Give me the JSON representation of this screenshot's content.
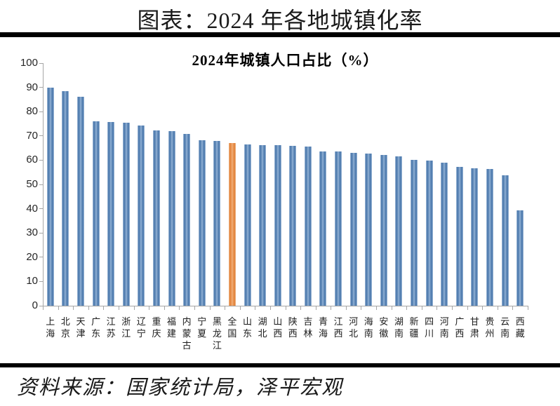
{
  "page": {
    "title": "图表：2024 年各地城镇化率",
    "source": "资料来源：国家统计局，泽平宏观"
  },
  "chart_data": {
    "type": "bar",
    "title": "2024年城镇人口占比（%）",
    "categories": [
      "上海",
      "北京",
      "天津",
      "广东",
      "江苏",
      "浙江",
      "辽宁",
      "重庆",
      "福建",
      "内蒙古",
      "宁夏",
      "黑龙江",
      "全国",
      "山东",
      "湖北",
      "山西",
      "陕西",
      "吉林",
      "青海",
      "江西",
      "河北",
      "海南",
      "安徽",
      "湖南",
      "新疆",
      "四川",
      "河南",
      "广西",
      "甘肃",
      "贵州",
      "云南",
      "西藏"
    ],
    "values": [
      89.9,
      88.4,
      86.1,
      76.0,
      75.6,
      75.4,
      74.3,
      72.3,
      71.9,
      70.8,
      68.3,
      68.0,
      67.0,
      66.4,
      66.2,
      66.2,
      65.9,
      65.6,
      63.5,
      63.5,
      63.1,
      62.6,
      62.1,
      61.6,
      60.2,
      59.8,
      58.9,
      57.1,
      56.6,
      56.3,
      53.9,
      39.4
    ],
    "highlight_category": "全国",
    "highlight_index": 12,
    "bar_color": "#4a77ab",
    "highlight_color": "#e8873f",
    "axis_color": "#a6a6a6",
    "xlabel": "",
    "ylabel": "",
    "ylim": [
      0,
      100
    ],
    "ytick_step": 10,
    "grid": false,
    "legend": null
  }
}
